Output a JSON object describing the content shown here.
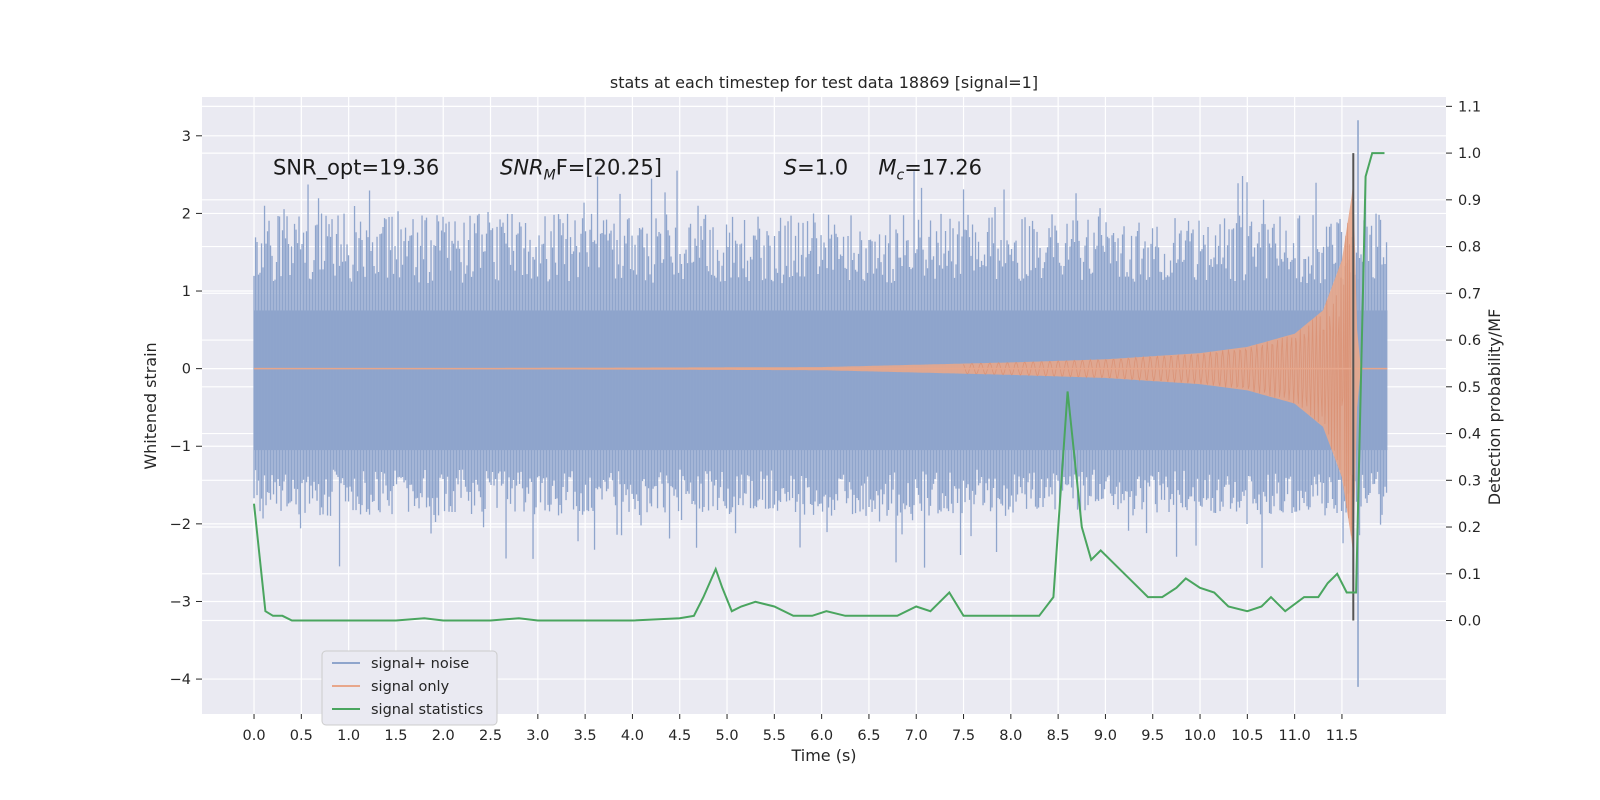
{
  "chart_data": {
    "type": "line",
    "title": "stats at each timestep for test data 18869 [signal=1]",
    "xlabel": "Time (s)",
    "ylabel_left": "Whitened strain",
    "ylabel_right": "Detection probability/MF",
    "xlim": [
      -0.55,
      12.6
    ],
    "ylim_left": [
      -4.45,
      3.5
    ],
    "ylim_right": [
      -0.2,
      1.12
    ],
    "x_ticks": [
      0.0,
      0.5,
      1.0,
      1.5,
      2.0,
      2.5,
      3.0,
      3.5,
      4.0,
      4.5,
      5.0,
      5.5,
      6.0,
      6.5,
      7.0,
      7.5,
      8.0,
      8.5,
      9.0,
      9.5,
      10.0,
      10.5,
      11.0,
      11.5
    ],
    "x_tick_labels": [
      "0.0",
      "0.5",
      "1.0",
      "1.5",
      "2.0",
      "2.5",
      "3.0",
      "3.5",
      "4.0",
      "4.5",
      "5.0",
      "5.5",
      "6.0",
      "6.5",
      "7.0",
      "7.5",
      "8.0",
      "8.5",
      "9.0",
      "9.5",
      "10.0",
      "10.5",
      "11.0",
      "11.5"
    ],
    "y_left_ticks": [
      3,
      2,
      1,
      0,
      -1,
      -2,
      -3,
      -4
    ],
    "y_left_tick_labels": [
      "3",
      "2",
      "1",
      "0",
      "−1",
      "−2",
      "−3",
      "−4"
    ],
    "y_right_ticks": [
      1.1,
      1.0,
      0.9,
      0.8,
      0.7,
      0.6,
      0.5,
      0.4,
      0.3,
      0.2,
      0.1,
      0.0
    ],
    "y_right_tick_labels": [
      "1.1",
      "1.0",
      "0.9",
      "0.8",
      "0.7",
      "0.6",
      "0.5",
      "0.4",
      "0.3",
      "0.2",
      "0.1",
      "0.0"
    ],
    "grid": true,
    "legend_position": "lower-left",
    "series": [
      {
        "name": "signal+ noise",
        "axis": "left",
        "color": "#8fa5cc",
        "x_range": [
          0.0,
          11.98
        ],
        "envelope_y_range": [
          -2.0,
          2.5
        ],
        "min_y": -4.1,
        "max_y": 3.2
      },
      {
        "name": "signal only",
        "axis": "left",
        "color": "#e8a78b",
        "x_range": [
          0.0,
          11.98
        ],
        "chirp_merger_time": 11.62,
        "peak_amplitude": 2.4,
        "envelope_points": [
          [
            0.0,
            0.0
          ],
          [
            6.0,
            0.02
          ],
          [
            8.0,
            0.08
          ],
          [
            9.0,
            0.12
          ],
          [
            10.0,
            0.2
          ],
          [
            10.5,
            0.28
          ],
          [
            11.0,
            0.45
          ],
          [
            11.3,
            0.75
          ],
          [
            11.5,
            1.4
          ],
          [
            11.6,
            2.2
          ],
          [
            11.62,
            2.4
          ],
          [
            11.66,
            0.5
          ],
          [
            11.7,
            0.0
          ]
        ]
      },
      {
        "name": "signal statistics",
        "axis": "right",
        "color": "#4aa55f",
        "points": [
          [
            0.0,
            0.25
          ],
          [
            0.12,
            0.02
          ],
          [
            0.2,
            0.01
          ],
          [
            0.3,
            0.01
          ],
          [
            0.4,
            0.0
          ],
          [
            0.6,
            0.0
          ],
          [
            1.0,
            0.0
          ],
          [
            1.5,
            0.0
          ],
          [
            1.8,
            0.005
          ],
          [
            2.0,
            0.0
          ],
          [
            2.5,
            0.0
          ],
          [
            2.8,
            0.005
          ],
          [
            3.0,
            0.0
          ],
          [
            3.5,
            0.0
          ],
          [
            4.0,
            0.0
          ],
          [
            4.5,
            0.005
          ],
          [
            4.65,
            0.01
          ],
          [
            4.75,
            0.05
          ],
          [
            4.88,
            0.11
          ],
          [
            4.95,
            0.07
          ],
          [
            5.05,
            0.02
          ],
          [
            5.15,
            0.03
          ],
          [
            5.3,
            0.04
          ],
          [
            5.5,
            0.03
          ],
          [
            5.7,
            0.01
          ],
          [
            5.9,
            0.01
          ],
          [
            6.05,
            0.02
          ],
          [
            6.25,
            0.01
          ],
          [
            6.5,
            0.01
          ],
          [
            6.8,
            0.01
          ],
          [
            7.0,
            0.03
          ],
          [
            7.15,
            0.02
          ],
          [
            7.25,
            0.04
          ],
          [
            7.35,
            0.06
          ],
          [
            7.5,
            0.01
          ],
          [
            7.7,
            0.01
          ],
          [
            8.0,
            0.01
          ],
          [
            8.3,
            0.01
          ],
          [
            8.45,
            0.05
          ],
          [
            8.6,
            0.49
          ],
          [
            8.75,
            0.2
          ],
          [
            8.85,
            0.13
          ],
          [
            8.95,
            0.15
          ],
          [
            9.1,
            0.12
          ],
          [
            9.3,
            0.08
          ],
          [
            9.45,
            0.05
          ],
          [
            9.6,
            0.05
          ],
          [
            9.75,
            0.07
          ],
          [
            9.85,
            0.09
          ],
          [
            10.0,
            0.07
          ],
          [
            10.15,
            0.06
          ],
          [
            10.3,
            0.03
          ],
          [
            10.5,
            0.02
          ],
          [
            10.65,
            0.03
          ],
          [
            10.75,
            0.05
          ],
          [
            10.9,
            0.02
          ],
          [
            11.1,
            0.05
          ],
          [
            11.25,
            0.05
          ],
          [
            11.35,
            0.08
          ],
          [
            11.45,
            0.1
          ],
          [
            11.55,
            0.06
          ],
          [
            11.65,
            0.06
          ],
          [
            11.75,
            0.95
          ],
          [
            11.82,
            1.0
          ],
          [
            11.95,
            1.0
          ]
        ]
      }
    ],
    "vertical_marker": {
      "x": 11.62,
      "color": "#555555",
      "y_range_right": [
        0.0,
        1.0
      ]
    },
    "annotations": [
      {
        "text": "SNR_opt=19.36",
        "x": 0.2,
        "y": 2.5,
        "style": "normal"
      },
      {
        "text": "SNR",
        "sub": "M",
        "suffix": "F=[20.25]",
        "x": 2.6,
        "y": 2.5,
        "style": "italic-math"
      },
      {
        "text": "S",
        "suffix": "=1.0",
        "x": 5.6,
        "y": 2.5,
        "style": "italic-math"
      },
      {
        "text": "M",
        "sub": "c",
        "suffix": "=17.26",
        "x": 6.6,
        "y": 2.5,
        "style": "italic-math"
      }
    ]
  }
}
